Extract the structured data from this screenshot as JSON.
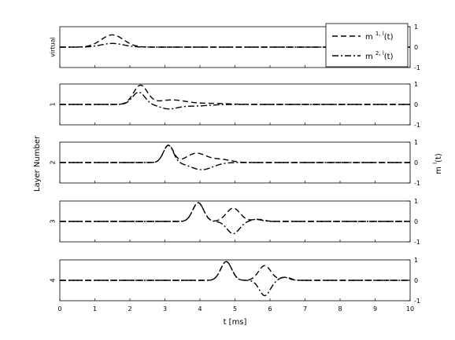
{
  "chart_data": {
    "type": "line",
    "xlabel": "t [ms]",
    "ylabel_left": "Layer Number",
    "ylabel_right": "m l(t)",
    "ylabel_right_parts": {
      "base": "m",
      "sup": "l",
      "tail": "(t)"
    },
    "xlim": [
      0,
      10
    ],
    "x_ticks": [
      "0",
      "1",
      "2",
      "3",
      "4",
      "5",
      "6",
      "7",
      "8",
      "9",
      "10"
    ],
    "ylim": [
      -1,
      1
    ],
    "y_ticks": [
      "1",
      "0",
      "-1"
    ],
    "legend": {
      "placement": "top-right",
      "entries": [
        {
          "base": "m",
          "sup": "1, l",
          "tail": "(t)",
          "style": "dashed"
        },
        {
          "base": "m",
          "sup": "2, l",
          "tail": "(t)",
          "style": "dashdot"
        }
      ]
    },
    "panels": [
      {
        "label": "virtual",
        "series": [
          {
            "legend": 0,
            "peaks": [
              {
                "t": 1.5,
                "a": 0.6,
                "s": 0.45
              }
            ]
          },
          {
            "legend": 1,
            "peaks": [
              {
                "t": 1.5,
                "a": 0.18,
                "s": 0.45
              }
            ]
          }
        ]
      },
      {
        "label": "1",
        "series": [
          {
            "legend": 0,
            "peaks": [
              {
                "t": 2.3,
                "a": 0.92,
                "s": 0.28
              },
              {
                "t": 3.2,
                "a": 0.22,
                "s": 0.6
              },
              {
                "t": 4.4,
                "a": 0.05,
                "s": 0.6
              }
            ]
          },
          {
            "legend": 1,
            "peaks": [
              {
                "t": 2.25,
                "a": 0.6,
                "s": 0.25
              },
              {
                "t": 3.1,
                "a": -0.2,
                "s": 0.35
              },
              {
                "t": 3.8,
                "a": -0.08,
                "s": 0.6
              }
            ]
          }
        ]
      },
      {
        "label": "2",
        "series": [
          {
            "legend": 0,
            "peaks": [
              {
                "t": 3.1,
                "a": 0.85,
                "s": 0.2
              },
              {
                "t": 3.9,
                "a": 0.45,
                "s": 0.4
              },
              {
                "t": 4.6,
                "a": 0.15,
                "s": 0.4
              }
            ]
          },
          {
            "legend": 1,
            "peaks": [
              {
                "t": 3.1,
                "a": 0.85,
                "s": 0.2
              },
              {
                "t": 4.05,
                "a": -0.35,
                "s": 0.45
              }
            ]
          }
        ]
      },
      {
        "label": "3",
        "series": [
          {
            "legend": 0,
            "peaks": [
              {
                "t": 3.95,
                "a": 0.92,
                "s": 0.22
              },
              {
                "t": 4.95,
                "a": 0.65,
                "s": 0.28
              },
              {
                "t": 5.65,
                "a": 0.1,
                "s": 0.25
              }
            ]
          },
          {
            "legend": 1,
            "peaks": [
              {
                "t": 3.95,
                "a": 0.92,
                "s": 0.22
              },
              {
                "t": 4.95,
                "a": -0.6,
                "s": 0.25
              },
              {
                "t": 5.6,
                "a": 0.1,
                "s": 0.22
              }
            ]
          }
        ]
      },
      {
        "label": "4",
        "series": [
          {
            "legend": 0,
            "peaks": [
              {
                "t": 4.75,
                "a": 0.92,
                "s": 0.22
              },
              {
                "t": 5.85,
                "a": 0.72,
                "s": 0.25
              },
              {
                "t": 6.45,
                "a": 0.15,
                "s": 0.2
              }
            ]
          },
          {
            "legend": 1,
            "peaks": [
              {
                "t": 4.75,
                "a": 0.92,
                "s": 0.22
              },
              {
                "t": 5.85,
                "a": -0.75,
                "s": 0.22
              },
              {
                "t": 6.4,
                "a": 0.15,
                "s": 0.2
              }
            ]
          }
        ]
      }
    ]
  }
}
